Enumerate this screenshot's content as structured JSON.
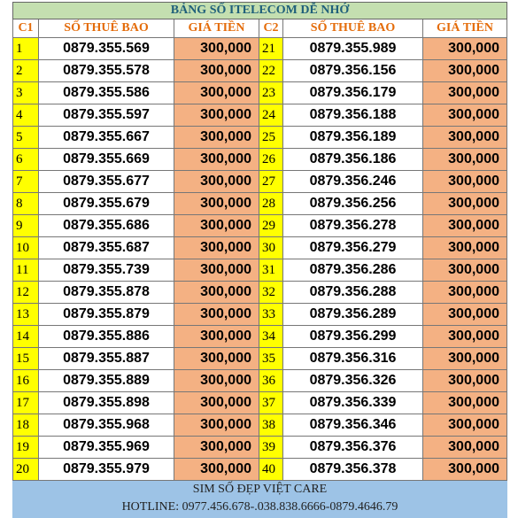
{
  "header": {
    "title": "BẢNG SỐ ITELECOM DỄ NHỚ"
  },
  "table": {
    "columns": [
      "C1",
      "SỐ THUÊ BAO",
      "GIÁ TIỀN",
      "C2",
      "SỐ THUÊ BAO",
      "GIÁ TIỀN"
    ],
    "rows": [
      [
        "1",
        "0879.355.569",
        "300,000",
        "21",
        "0879.355.989",
        "300,000"
      ],
      [
        "2",
        "0879.355.578",
        "300,000",
        "22",
        "0879.356.156",
        "300,000"
      ],
      [
        "3",
        "0879.355.586",
        "300,000",
        "23",
        "0879.356.179",
        "300,000"
      ],
      [
        "4",
        "0879.355.597",
        "300,000",
        "24",
        "0879.356.188",
        "300,000"
      ],
      [
        "5",
        "0879.355.667",
        "300,000",
        "25",
        "0879.356.189",
        "300,000"
      ],
      [
        "6",
        "0879.355.669",
        "300,000",
        "26",
        "0879.356.186",
        "300,000"
      ],
      [
        "7",
        "0879.355.677",
        "300,000",
        "27",
        "0879.356.246",
        "300,000"
      ],
      [
        "8",
        "0879.355.679",
        "300,000",
        "28",
        "0879.356.256",
        "300,000"
      ],
      [
        "9",
        "0879.355.686",
        "300,000",
        "29",
        "0879.356.278",
        "300,000"
      ],
      [
        "10",
        "0879.355.687",
        "300,000",
        "30",
        "0879.356.279",
        "300,000"
      ],
      [
        "11",
        "0879.355.739",
        "300,000",
        "31",
        "0879.356.286",
        "300,000"
      ],
      [
        "12",
        "0879.355.878",
        "300,000",
        "32",
        "0879.356.288",
        "300,000"
      ],
      [
        "13",
        "0879.355.879",
        "300,000",
        "33",
        "0879.356.289",
        "300,000"
      ],
      [
        "14",
        "0879.355.886",
        "300,000",
        "34",
        "0879.356.299",
        "300,000"
      ],
      [
        "15",
        "0879.355.887",
        "300,000",
        "35",
        "0879.356.316",
        "300,000"
      ],
      [
        "16",
        "0879.355.889",
        "300,000",
        "36",
        "0879.356.326",
        "300,000"
      ],
      [
        "17",
        "0879.355.898",
        "300,000",
        "37",
        "0879.356.339",
        "300,000"
      ],
      [
        "18",
        "0879.355.968",
        "300,000",
        "38",
        "0879.356.346",
        "300,000"
      ],
      [
        "19",
        "0879.355.969",
        "300,000",
        "39",
        "0879.356.376",
        "300,000"
      ],
      [
        "20",
        "0879.355.979",
        "300,000",
        "40",
        "0879.356.378",
        "300,000"
      ]
    ]
  },
  "footer": {
    "line1": "SIM SỐ ĐẸP VIỆT CARE",
    "line2": "HOTLINE: 0977.456.678-.038.838.6666-0879.4646.79"
  }
}
